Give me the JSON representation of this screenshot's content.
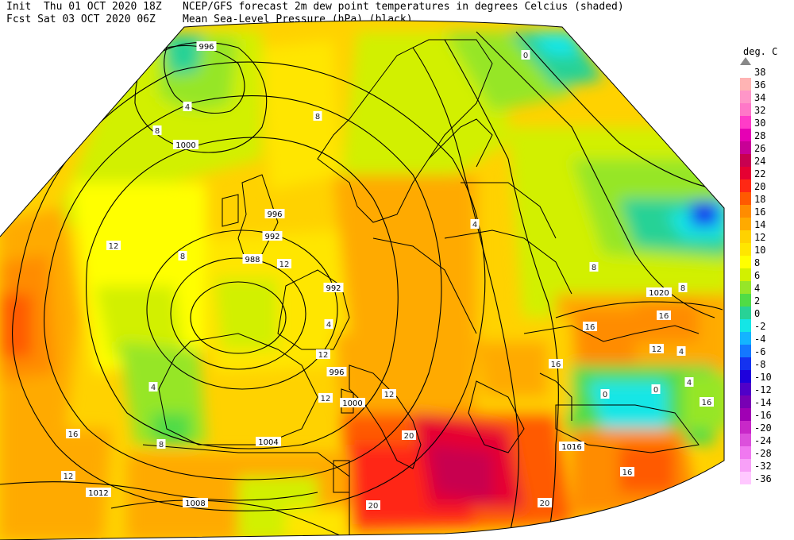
{
  "header": {
    "line1_left": "Init  Thu 01 OCT 2020 18Z",
    "line1_right": "NCEP/GFS forecast 2m dew point temperatures in degrees Celcius (shaded)",
    "line2_left": "Fcst Sat 03 OCT 2020 06Z",
    "line2_right": "Mean Sea-Level Pressure (hPa) (black)."
  },
  "legend": {
    "title": "deg. C",
    "levels": [
      {
        "label": "38",
        "color": "#ffffff"
      },
      {
        "label": "36",
        "color": "#ffb4b4"
      },
      {
        "label": "34",
        "color": "#ff96c8"
      },
      {
        "label": "32",
        "color": "#ff78c8"
      },
      {
        "label": "30",
        "color": "#ff3cc8"
      },
      {
        "label": "28",
        "color": "#e600b4"
      },
      {
        "label": "26",
        "color": "#c80096"
      },
      {
        "label": "24",
        "color": "#c80050"
      },
      {
        "label": "22",
        "color": "#e60032"
      },
      {
        "label": "20",
        "color": "#ff2814"
      },
      {
        "label": "18",
        "color": "#ff5a00"
      },
      {
        "label": "16",
        "color": "#ff8c00"
      },
      {
        "label": "14",
        "color": "#ffaa00"
      },
      {
        "label": "12",
        "color": "#ffd200"
      },
      {
        "label": "10",
        "color": "#ffe600"
      },
      {
        "label": "8",
        "color": "#ffff00"
      },
      {
        "label": "6",
        "color": "#d2f000"
      },
      {
        "label": "4",
        "color": "#96e628"
      },
      {
        "label": "2",
        "color": "#50dc46"
      },
      {
        "label": "0",
        "color": "#28d296"
      },
      {
        "label": "-2",
        "color": "#14e6e6"
      },
      {
        "label": "-4",
        "color": "#14b4ff"
      },
      {
        "label": "-6",
        "color": "#1478ff"
      },
      {
        "label": "-8",
        "color": "#1432f0"
      },
      {
        "label": "-10",
        "color": "#1e00dc"
      },
      {
        "label": "-12",
        "color": "#5000c8"
      },
      {
        "label": "-14",
        "color": "#7800b4"
      },
      {
        "label": "-16",
        "color": "#a000b4"
      },
      {
        "label": "-20",
        "color": "#c828c8"
      },
      {
        "label": "-24",
        "color": "#dc50dc"
      },
      {
        "label": "-28",
        "color": "#f078f0"
      },
      {
        "label": "-32",
        "color": "#f8a0f8"
      },
      {
        "label": "-36",
        "color": "#ffc8ff"
      }
    ]
  },
  "isobar_labels": [
    "996",
    "1000",
    "996",
    "992",
    "988",
    "992",
    "996",
    "1000",
    "1004",
    "1008",
    "1012",
    "1016",
    "1020"
  ],
  "dewpoint_labels": [
    "8",
    "8",
    "4",
    "0",
    "12",
    "12",
    "8",
    "4",
    "12",
    "16",
    "12",
    "20",
    "20",
    "16",
    "16",
    "16",
    "12",
    "8",
    "4",
    "0",
    "0",
    "4",
    "8",
    "12",
    "16",
    "20",
    "12",
    "4",
    "8",
    "4",
    "16"
  ]
}
